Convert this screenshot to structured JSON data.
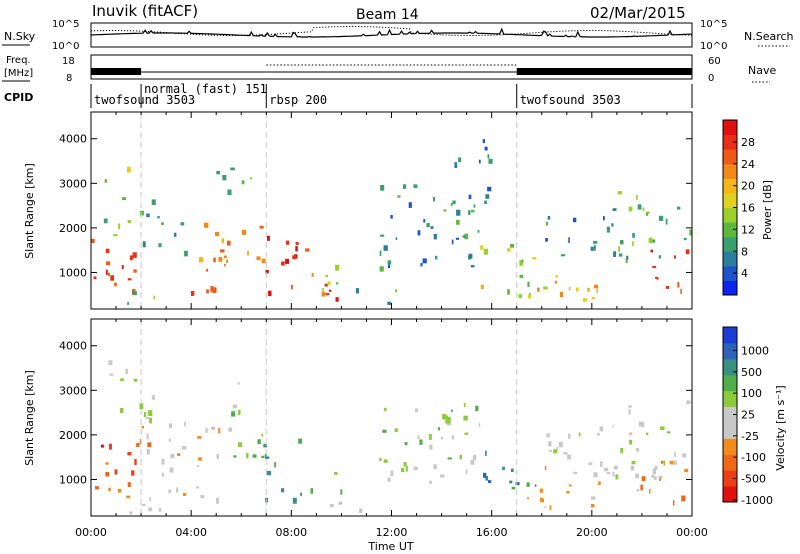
{
  "header": {
    "station": "Inuvik (fitACF)",
    "beam": "Beam 14",
    "date": "02/Mar/2015"
  },
  "top_panels": {
    "noise": {
      "left_label": "N.Sky",
      "left_ticks": [
        "10^5",
        "10^0"
      ],
      "right_label": "N.Search",
      "right_ticks": [
        "10^5",
        "10^0"
      ]
    },
    "freq": {
      "left_label_line1": "Freq.",
      "left_label_line2": "[MHz]",
      "left_ticks": [
        "18",
        "8"
      ],
      "right_label": "Nave",
      "right_ticks": [
        "60",
        "0"
      ]
    },
    "cpid": {
      "label": "CPID",
      "modes": [
        {
          "name": "twofsound 3503",
          "start_h": 0,
          "end_h": 2
        },
        {
          "name": "normal (fast) 151",
          "start_h": 2,
          "end_h": 7
        },
        {
          "name": "rbsp 200",
          "start_h": 7,
          "end_h": 17
        },
        {
          "name": "twofsound 3503",
          "start_h": 17,
          "end_h": 24
        }
      ]
    }
  },
  "x_axis": {
    "label": "Time UT",
    "ticks": [
      "00:00",
      "04:00",
      "08:00",
      "12:00",
      "16:00",
      "20:00",
      "00:00"
    ],
    "range_h": [
      0,
      24
    ]
  },
  "chart_data": [
    {
      "type": "heatmap",
      "title": "Power",
      "ylabel": "Slant Range [km]",
      "yticks": [
        1000,
        2000,
        3000,
        4000
      ],
      "ylim": [
        180,
        4600
      ],
      "xlim_h": [
        0,
        24
      ],
      "colorbar": {
        "label": "Power [dB]",
        "ticks": [
          "28",
          "24",
          "20",
          "16",
          "12",
          "8",
          "4"
        ],
        "range": [
          0,
          32
        ],
        "colors": [
          "#0b24f0",
          "#1f54c8",
          "#2b7f9c",
          "#3a9e6e",
          "#5cb83c",
          "#9bcf2a",
          "#e0d21e",
          "#f5b619",
          "#f2881a",
          "#ee5a18",
          "#e82f18",
          "#e01010"
        ]
      },
      "regions": [
        {
          "t": [
            0.0,
            1.8
          ],
          "r": [
            500,
            1800
          ],
          "level": 27
        },
        {
          "t": [
            0.2,
            1.6
          ],
          "r": [
            1800,
            3500
          ],
          "level": 14
        },
        {
          "t": [
            1.8,
            3.8
          ],
          "r": [
            1400,
            2600
          ],
          "level": 9
        },
        {
          "t": [
            1.2,
            3.2
          ],
          "r": [
            200,
            600
          ],
          "level": 12
        },
        {
          "t": [
            3.0,
            5.0
          ],
          "r": [
            300,
            700
          ],
          "level": 26
        },
        {
          "t": [
            4.0,
            5.5
          ],
          "r": [
            1000,
            2200
          ],
          "level": 22
        },
        {
          "t": [
            5.0,
            7.0
          ],
          "r": [
            1200,
            2200
          ],
          "level": 23
        },
        {
          "t": [
            5.0,
            6.4
          ],
          "r": [
            2300,
            3400
          ],
          "level": 12
        },
        {
          "t": [
            6.8,
            8.2
          ],
          "r": [
            500,
            2000
          ],
          "level": 29
        },
        {
          "t": [
            7.8,
            9.0
          ],
          "r": [
            600,
            1800
          ],
          "level": 26
        },
        {
          "t": [
            8.2,
            9.8
          ],
          "r": [
            250,
            700
          ],
          "level": 27
        },
        {
          "t": [
            9.0,
            10.2
          ],
          "r": [
            400,
            1200
          ],
          "level": 16
        },
        {
          "t": [
            10.5,
            12.5
          ],
          "r": [
            200,
            600
          ],
          "level": 9
        },
        {
          "t": [
            11.5,
            15.5
          ],
          "r": [
            1000,
            3000
          ],
          "level": 8
        },
        {
          "t": [
            14.0,
            16.0
          ],
          "r": [
            2500,
            4000
          ],
          "level": 7
        },
        {
          "t": [
            15.5,
            18.5
          ],
          "r": [
            400,
            1600
          ],
          "level": 15
        },
        {
          "t": [
            17.0,
            20.5
          ],
          "r": [
            300,
            900
          ],
          "level": 20
        },
        {
          "t": [
            18.0,
            21.5
          ],
          "r": [
            1200,
            2400
          ],
          "level": 7
        },
        {
          "t": [
            21.0,
            24.0
          ],
          "r": [
            1200,
            2800
          ],
          "level": 12
        },
        {
          "t": [
            22.0,
            24.0
          ],
          "r": [
            500,
            1500
          ],
          "level": 26
        }
      ]
    },
    {
      "type": "heatmap",
      "title": "Velocity",
      "ylabel": "Slant Range [km]",
      "yticks": [
        1000,
        2000,
        3000,
        4000
      ],
      "ylim": [
        180,
        4600
      ],
      "xlim_h": [
        0,
        24
      ],
      "colorbar": {
        "label": "Velocity [m s⁻¹]",
        "ticks": [
          "1000",
          "500",
          "100",
          "25",
          "-25",
          "-100",
          "-500",
          "-1000"
        ],
        "range": [
          -1200,
          1200
        ],
        "colors": [
          "#e01010",
          "#ea3e16",
          "#ef6818",
          "#f28c1c",
          "#c8c8c8",
          "#c8c8c8",
          "#8ccc3c",
          "#4fae4a",
          "#3a8e82",
          "#2c62b8",
          "#1c3cd8"
        ]
      },
      "regions": [
        {
          "t": [
            0.0,
            1.8
          ],
          "r": [
            500,
            1800
          ],
          "level": -700
        },
        {
          "t": [
            1.8,
            3.8
          ],
          "r": [
            1000,
            2400
          ],
          "level": -400
        },
        {
          "t": [
            0.5,
            2.5
          ],
          "r": [
            2300,
            3700
          ],
          "level": 30
        },
        {
          "t": [
            1.2,
            3.2
          ],
          "r": [
            200,
            600
          ],
          "level": -60
        },
        {
          "t": [
            3.0,
            5.2
          ],
          "r": [
            300,
            800
          ],
          "level": -200
        },
        {
          "t": [
            4.0,
            5.5
          ],
          "r": [
            1000,
            2200
          ],
          "level": -150
        },
        {
          "t": [
            5.2,
            7.0
          ],
          "r": [
            1200,
            2200
          ],
          "level": 300
        },
        {
          "t": [
            5.0,
            6.4
          ],
          "r": [
            2400,
            3300
          ],
          "level": 120
        },
        {
          "t": [
            6.8,
            8.5
          ],
          "r": [
            500,
            2000
          ],
          "level": 600
        },
        {
          "t": [
            8.5,
            10.0
          ],
          "r": [
            300,
            1200
          ],
          "level": 250
        },
        {
          "t": [
            9.5,
            12.0
          ],
          "r": [
            200,
            500
          ],
          "level": 40
        },
        {
          "t": [
            11.5,
            15.5
          ],
          "r": [
            900,
            2800
          ],
          "level": 160
        },
        {
          "t": [
            15.5,
            18.0
          ],
          "r": [
            500,
            1600
          ],
          "level": 700
        },
        {
          "t": [
            17.0,
            20.5
          ],
          "r": [
            300,
            900
          ],
          "level": -250
        },
        {
          "t": [
            18.0,
            21.0
          ],
          "r": [
            1100,
            2200
          ],
          "level": -120
        },
        {
          "t": [
            20.5,
            24.0
          ],
          "r": [
            1000,
            2800
          ],
          "level": -40
        },
        {
          "t": [
            21.5,
            24.0
          ],
          "r": [
            400,
            1400
          ],
          "level": -450
        }
      ]
    }
  ]
}
